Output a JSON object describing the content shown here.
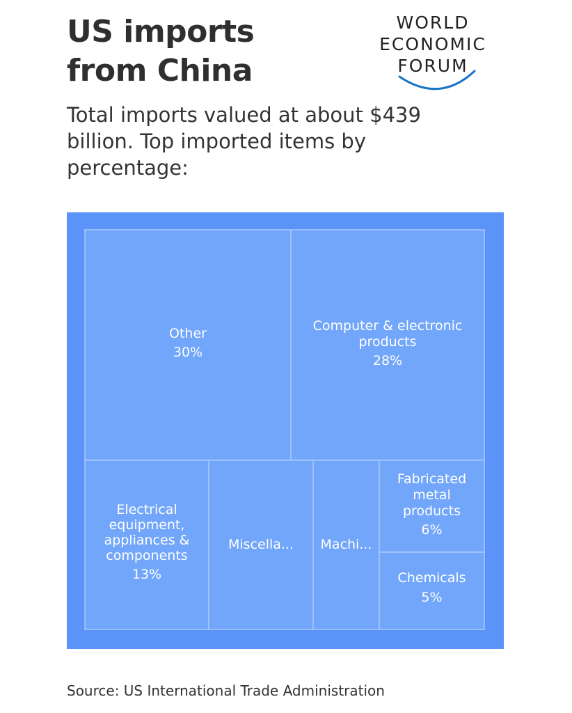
{
  "header": {
    "title_line1": "US imports",
    "title_line2": "from China",
    "subtitle": "Total imports valued at about $439 billion. Top imported items by percentage:"
  },
  "logo": {
    "line1": "WORLD",
    "line2": "ECONOMIC",
    "line3": "FORUM",
    "arc_color": "#1a73c8"
  },
  "chart_data": {
    "type": "treemap",
    "unit": "%",
    "colors": {
      "frame": "#5b93f8",
      "tile": "#72a6fa",
      "divider": "#a9c8fc",
      "label": "#ffffff"
    },
    "items": [
      {
        "label": "Other",
        "value": 30,
        "value_label": "30%"
      },
      {
        "label": "Computer & electronic products",
        "value": 28,
        "value_label": "28%"
      },
      {
        "label": "Electrical equipment, appliances & components",
        "value": 13,
        "value_label": "13%"
      },
      {
        "label": "Miscella...",
        "value": null,
        "value_label": ""
      },
      {
        "label": "Machi...",
        "value": null,
        "value_label": ""
      },
      {
        "label": "Fabricated metal products",
        "value": 6,
        "value_label": "6%"
      },
      {
        "label": "Chemicals",
        "value": 5,
        "value_label": "5%"
      }
    ]
  },
  "footer": {
    "source": "Source: US International Trade Administration"
  }
}
